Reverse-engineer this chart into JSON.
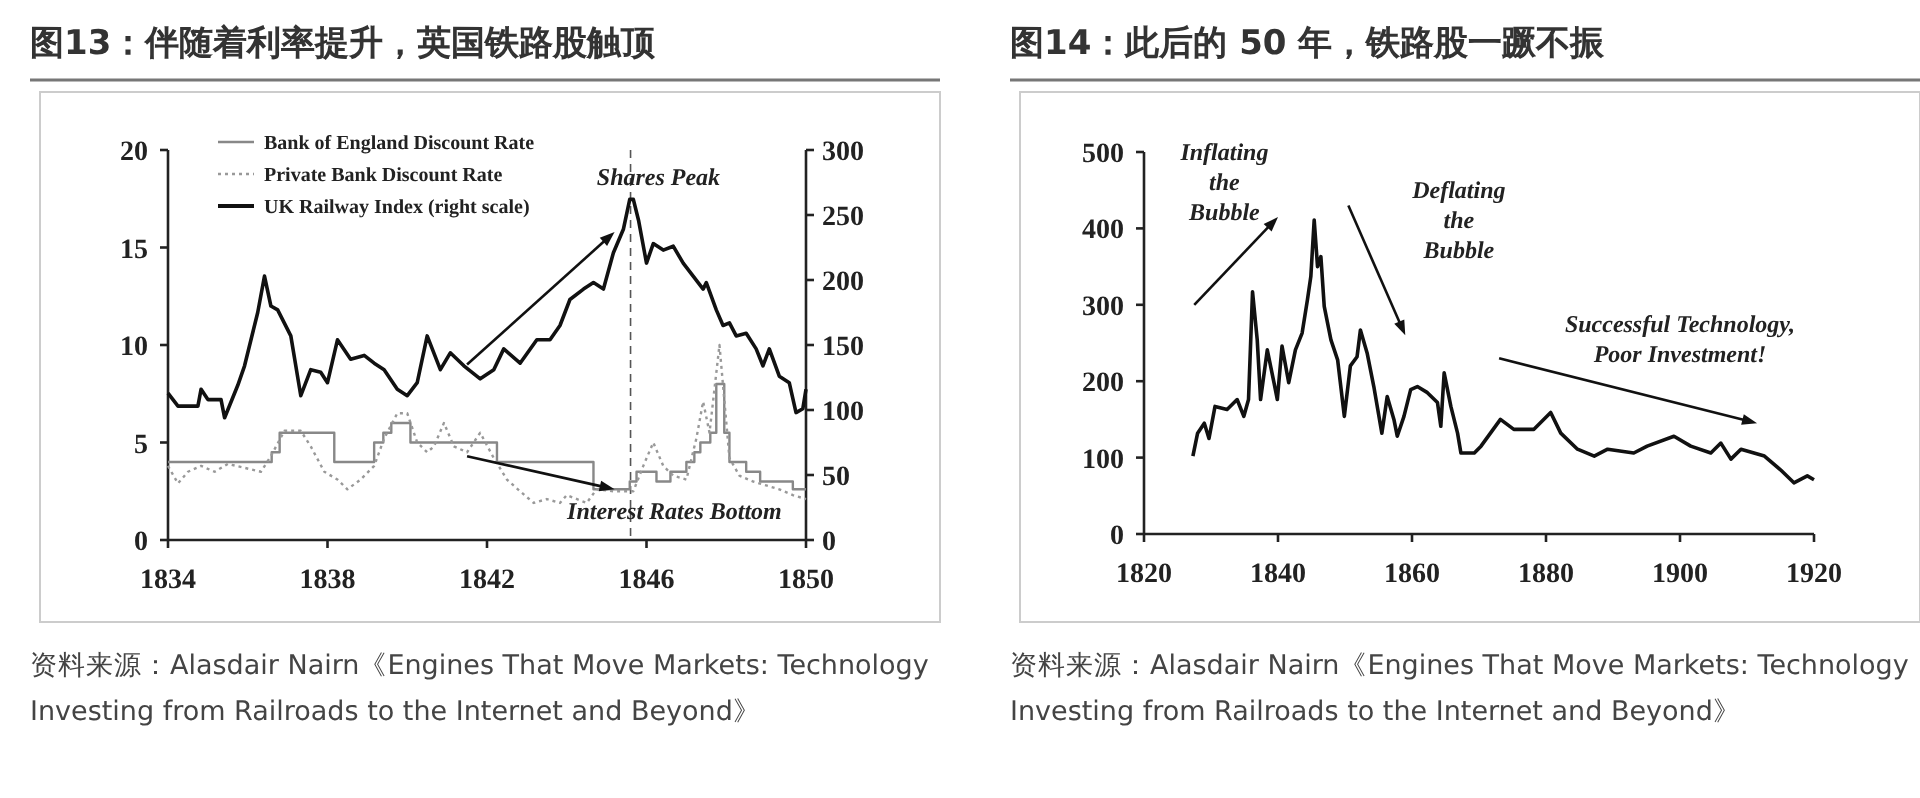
{
  "chart_data": [
    {
      "type": "line",
      "title": "图13：伴随着利率提升，英国铁路股触顶",
      "xlim": [
        1834,
        1850
      ],
      "xticks": [
        1834,
        1838,
        1842,
        1846,
        1850
      ],
      "ylim": [
        0,
        20
      ],
      "yticks": [
        0,
        5,
        10,
        15,
        20
      ],
      "y2lim": [
        0,
        300
      ],
      "y2ticks": [
        0,
        50,
        100,
        150,
        200,
        250,
        300
      ],
      "legend": "top left",
      "ref_lines": [
        {
          "axis": "x",
          "value": 1845.6,
          "line_style": "dashed",
          "color": "#555555"
        }
      ],
      "annotations": [
        "Shares Peak",
        {
          "text": "Interest Rates Bottom",
          "x": 1845.2,
          "y": 2.6
        },
        "资料来源：Alasdair Nairn《Engines That Move Markets: Technology Investing from Railroads to the Internet and Beyond》"
      ],
      "series": [
        {
          "name": "Bank of England Discount Rate",
          "type": "step",
          "color": "#888888",
          "line_style": "solid",
          "x": [
            1834,
            1836.6,
            1836.8,
            1838.17,
            1839.17,
            1839.4,
            1839.6,
            1840.08,
            1842.25,
            1844.67,
            1845.58,
            1845.75,
            1846.25,
            1846.6,
            1847.0,
            1847.2,
            1847.35,
            1847.6,
            1847.75,
            1847.95,
            1848.08,
            1848.5,
            1848.85,
            1849.67,
            1850
          ],
          "values": [
            4,
            4.5,
            5.5,
            4,
            5,
            5.5,
            6,
            5,
            4,
            2.6,
            3,
            3.5,
            3,
            3.5,
            4,
            4.5,
            5,
            5.5,
            8,
            5.5,
            4,
            3.5,
            3,
            2.6,
            2.6
          ]
        },
        {
          "name": "Private Bank Discount Rate",
          "type": "line",
          "color": "#999999",
          "line_style": "dotted",
          "x": [
            1834,
            1834.25,
            1834.5,
            1834.83,
            1835.17,
            1835.5,
            1835.92,
            1836.33,
            1836.58,
            1836.92,
            1837.33,
            1837.58,
            1837.92,
            1838.25,
            1838.5,
            1838.83,
            1839.17,
            1839.42,
            1839.75,
            1840,
            1840.25,
            1840.5,
            1840.67,
            1840.92,
            1841.17,
            1841.5,
            1841.83,
            1842.17,
            1842.5,
            1842.83,
            1843.17,
            1843.5,
            1843.83,
            1844,
            1844.5,
            1844.75,
            1845.17,
            1845.67,
            1845.92,
            1846.17,
            1846.42,
            1846.67,
            1847,
            1847.25,
            1847.42,
            1847.58,
            1847.83,
            1848.08,
            1848.33,
            1848.67,
            1849,
            1849.33,
            1849.67,
            1850
          ],
          "values": [
            3.8,
            2.9,
            3.5,
            3.8,
            3.5,
            3.9,
            3.7,
            3.5,
            4.3,
            5.6,
            5.6,
            4.8,
            3.5,
            3.1,
            2.6,
            3.1,
            3.8,
            5.2,
            6.5,
            6.5,
            5,
            4.5,
            4.8,
            6,
            4.8,
            4.5,
            5.5,
            4.2,
            3.1,
            2.5,
            1.9,
            2.1,
            1.9,
            2.3,
            1.9,
            2.6,
            2.5,
            2.5,
            3.8,
            5,
            3.8,
            3.3,
            3.1,
            5.2,
            7.1,
            5.5,
            10,
            4.2,
            3.3,
            3,
            2.8,
            2.6,
            2.3,
            2.1
          ]
        },
        {
          "name": "UK Railway Index (right scale)",
          "type": "line",
          "axis": "y2",
          "color": "#111111",
          "line_style": "solid",
          "x": [
            1834,
            1834.25,
            1834.75,
            1834.83,
            1835,
            1835.33,
            1835.42,
            1835.75,
            1835.92,
            1836.25,
            1836.42,
            1836.58,
            1836.75,
            1837.08,
            1837.33,
            1837.58,
            1837.83,
            1838,
            1838.25,
            1838.58,
            1838.92,
            1839.17,
            1839.42,
            1839.75,
            1840,
            1840.25,
            1840.5,
            1840.83,
            1841.08,
            1841.42,
            1841.83,
            1842.17,
            1842.42,
            1842.83,
            1843.25,
            1843.58,
            1843.83,
            1844.08,
            1844.42,
            1844.67,
            1844.92,
            1845.17,
            1845.42,
            1845.58,
            1845.67,
            1845.8,
            1846,
            1846.17,
            1846.42,
            1846.67,
            1846.92,
            1847.17,
            1847.42,
            1847.5,
            1847.75,
            1847.92,
            1848.08,
            1848.25,
            1848.5,
            1848.75,
            1848.92,
            1849.08,
            1849.33,
            1849.58,
            1849.75,
            1849.92,
            1850
          ],
          "values": [
            113,
            103,
            103,
            116,
            108,
            108,
            94,
            119,
            134,
            175,
            203,
            180,
            177,
            157,
            111,
            131,
            129,
            121,
            154,
            139,
            142,
            136,
            131,
            116,
            111,
            121,
            157,
            131,
            144,
            134,
            124,
            131,
            147,
            136,
            154,
            154,
            165,
            185,
            193,
            198,
            193,
            221,
            239,
            262,
            262,
            246,
            213,
            228,
            223,
            226,
            213,
            203,
            193,
            198,
            177,
            165,
            167,
            157,
            159,
            147,
            134,
            147,
            126,
            121,
            98,
            101,
            116
          ]
        }
      ]
    },
    {
      "type": "line",
      "title": "图14：此后的 50 年，铁路股一蹶不振",
      "xlim": [
        1820,
        1920
      ],
      "xticks": [
        1820,
        1840,
        1860,
        1880,
        1900,
        1920
      ],
      "ylim": [
        0,
        500
      ],
      "yticks": [
        0,
        100,
        200,
        300,
        400,
        500
      ],
      "annotations": [
        "Inflating\nthe\nBubble",
        "Deflating\nthe\nBubble",
        "Successful Technology,\nPoor Investment!",
        "资料来源：Alasdair Nairn《Engines That Move Markets: Technology Investing from Railroads to the Internet and Beyond》"
      ],
      "series": [
        {
          "color": "#111111",
          "x": [
            1827.3,
            1828,
            1829,
            1829.7,
            1830.6,
            1832.4,
            1833.9,
            1834.9,
            1835.6,
            1836.2,
            1836.9,
            1837.4,
            1838.4,
            1839.4,
            1839.9,
            1840.6,
            1841.6,
            1842.6,
            1843.6,
            1844.4,
            1844.9,
            1845.4,
            1845.9,
            1846.4,
            1846.9,
            1847.9,
            1848.9,
            1849.9,
            1850.8,
            1851.8,
            1852.3,
            1853.3,
            1854.3,
            1855.5,
            1856.3,
            1857.3,
            1857.8,
            1858.8,
            1859.8,
            1860.8,
            1862.3,
            1863.8,
            1864.3,
            1864.8,
            1865.8,
            1866.8,
            1867.3,
            1869.3,
            1870.3,
            1873.2,
            1875.2,
            1878.2,
            1880.7,
            1882.2,
            1884.7,
            1887.2,
            1889.2,
            1893.1,
            1895.1,
            1899.1,
            1901.6,
            1904.6,
            1906.1,
            1907.6,
            1909.1,
            1912.6,
            1915,
            1917,
            1919,
            1920
          ],
          "values": [
            102,
            132,
            145,
            125,
            167,
            163,
            176,
            154,
            176,
            317,
            254,
            176,
            241,
            198,
            176,
            246,
            198,
            241,
            263,
            307,
            337,
            411,
            350,
            363,
            298,
            254,
            228,
            154,
            220,
            232,
            267,
            237,
            193,
            132,
            180,
            150,
            128,
            154,
            189,
            193,
            185,
            172,
            141,
            211,
            167,
            132,
            106,
            106,
            115,
            150,
            137,
            137,
            159,
            132,
            111,
            102,
            111,
            106,
            115,
            128,
            115,
            106,
            119,
            98,
            111,
            102,
            84,
            67,
            76,
            71
          ]
        }
      ]
    }
  ]
}
